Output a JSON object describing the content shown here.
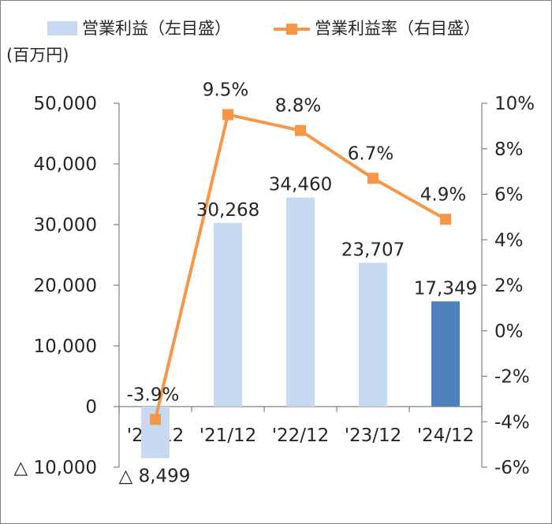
{
  "chart_data": {
    "type": "bar+line",
    "categories": [
      "'20/12",
      "'21/12",
      "'22/12",
      "'23/12",
      "'24/12"
    ],
    "unit_label": "(百万円)",
    "bar_series": {
      "name": "営業利益（左目盛）",
      "values": [
        -8499,
        30268,
        34460,
        23707,
        17349
      ],
      "labels": [
        "△ 8,499",
        "30,268",
        "34,460",
        "23,707",
        "17,349"
      ],
      "color": "#c6d9f0",
      "highlight_color": "#4f81bd",
      "highlight_index": 4
    },
    "line_series": {
      "name": "営業利益率（右目盛）",
      "values": [
        -3.9,
        9.5,
        8.8,
        6.7,
        4.9
      ],
      "labels": [
        "-3.9%",
        "9.5%",
        "8.8%",
        "6.7%",
        "4.9%"
      ],
      "color": "#f79646"
    },
    "left_axis": {
      "ylim": [
        -10000,
        50000
      ],
      "ticks": [
        -10000,
        0,
        10000,
        20000,
        30000,
        40000,
        50000
      ],
      "tick_labels": [
        "△ 10,000",
        "0",
        "10,000",
        "20,000",
        "30,000",
        "40,000",
        "50,000"
      ]
    },
    "right_axis": {
      "ylim": [
        -6,
        10
      ],
      "ticks": [
        -6,
        -4,
        -2,
        0,
        2,
        4,
        6,
        8,
        10
      ],
      "tick_labels": [
        "-6%",
        "-4%",
        "-2%",
        "0%",
        "2%",
        "4%",
        "6%",
        "8%",
        "10%"
      ]
    },
    "legend_position": "top",
    "grid": false
  }
}
